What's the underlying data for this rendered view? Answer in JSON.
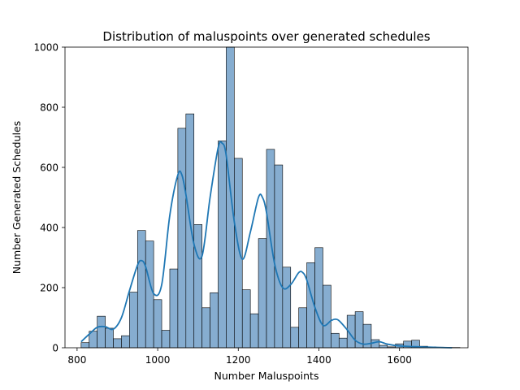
{
  "chart_data": {
    "type": "bar",
    "title": "Distribution of maluspoints over generated schedules",
    "xlabel": "Number Maluspoints",
    "ylabel": "Number Generated Schedules",
    "xlim": [
      770,
      1770
    ],
    "ylim": [
      0,
      1000
    ],
    "xticks": [
      800,
      1000,
      1200,
      1400,
      1600
    ],
    "yticks": [
      0,
      200,
      400,
      600,
      800,
      1000
    ],
    "bin_start": 810,
    "bin_width": 20,
    "values": [
      17,
      55,
      105,
      65,
      30,
      40,
      185,
      390,
      355,
      160,
      58,
      262,
      730,
      778,
      410,
      133,
      183,
      688,
      1000,
      630,
      193,
      113,
      363,
      660,
      608,
      268,
      68,
      133,
      283,
      333,
      208,
      48,
      32,
      108,
      120,
      78,
      27,
      8,
      3,
      13,
      22,
      25,
      5,
      3,
      2,
      1,
      1
    ],
    "kde": {
      "x": [
        810,
        830,
        850,
        870,
        890,
        910,
        930,
        950,
        960,
        970,
        990,
        1010,
        1030,
        1050,
        1060,
        1070,
        1090,
        1110,
        1130,
        1150,
        1160,
        1170,
        1190,
        1210,
        1230,
        1250,
        1260,
        1270,
        1290,
        1310,
        1330,
        1350,
        1360,
        1370,
        1390,
        1410,
        1430,
        1440,
        1450,
        1470,
        1490,
        1510,
        1530,
        1550,
        1570,
        1600,
        1650,
        1700,
        1730
      ],
      "y": [
        20,
        45,
        68,
        70,
        62,
        100,
        190,
        275,
        290,
        270,
        180,
        210,
        440,
        575,
        575,
        510,
        345,
        305,
        500,
        665,
        680,
        640,
        420,
        295,
        385,
        500,
        500,
        450,
        280,
        200,
        210,
        250,
        250,
        225,
        135,
        75,
        90,
        95,
        90,
        60,
        25,
        12,
        15,
        20,
        12,
        6,
        3,
        1,
        0
      ]
    },
    "bar_fill": "#86add0",
    "bar_edge": "#000000",
    "kde_color": "#1f77b4",
    "grid": false
  }
}
